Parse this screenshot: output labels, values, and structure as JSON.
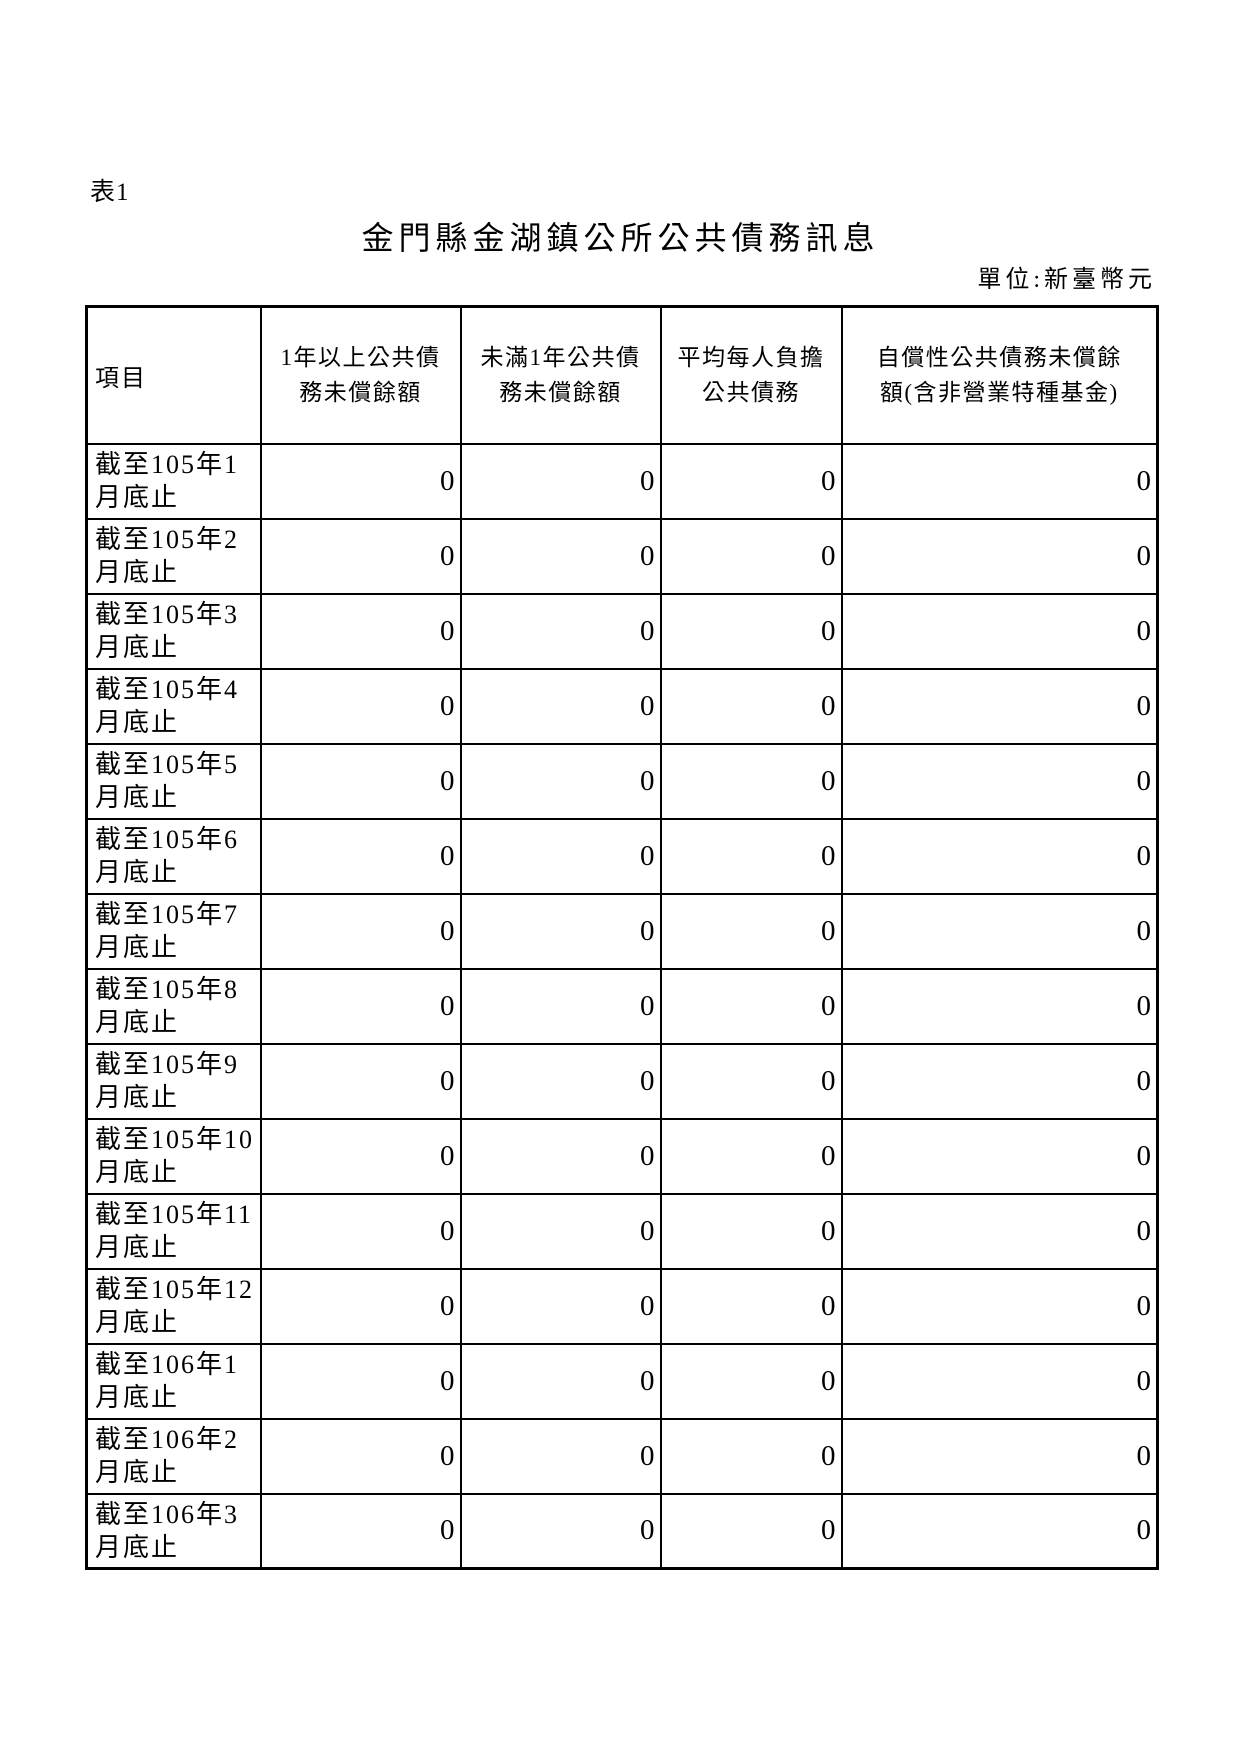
{
  "page": {
    "table_tag": "表1",
    "title": "金門縣金湖鎮公所公共債務訊息",
    "unit_note": "單位:新臺幣元",
    "text_color": "#000000",
    "background_color": "#ffffff"
  },
  "table": {
    "columns": [
      "項目",
      "1年以上公共債\n務未償餘額",
      "未滿1年公共債\n務未償餘額",
      "平均每人負擔\n公共債務",
      "自償性公共債務未償餘\n額(含非營業特種基金)"
    ],
    "rows": [
      {
        "label": "截至105年1\n月底止",
        "values": [
          "0",
          "0",
          "0",
          "0"
        ]
      },
      {
        "label": "截至105年2\n月底止",
        "values": [
          "0",
          "0",
          "0",
          "0"
        ]
      },
      {
        "label": "截至105年3\n月底止",
        "values": [
          "0",
          "0",
          "0",
          "0"
        ]
      },
      {
        "label": "截至105年4\n月底止",
        "values": [
          "0",
          "0",
          "0",
          "0"
        ]
      },
      {
        "label": "截至105年5\n月底止",
        "values": [
          "0",
          "0",
          "0",
          "0"
        ]
      },
      {
        "label": "截至105年6\n月底止",
        "values": [
          "0",
          "0",
          "0",
          "0"
        ]
      },
      {
        "label": "截至105年7\n月底止",
        "values": [
          "0",
          "0",
          "0",
          "0"
        ]
      },
      {
        "label": "截至105年8\n月底止",
        "values": [
          "0",
          "0",
          "0",
          "0"
        ]
      },
      {
        "label": "截至105年9\n月底止",
        "values": [
          "0",
          "0",
          "0",
          "0"
        ]
      },
      {
        "label": "截至105年10\n月底止",
        "values": [
          "0",
          "0",
          "0",
          "0"
        ]
      },
      {
        "label": "截至105年11\n月底止",
        "values": [
          "0",
          "0",
          "0",
          "0"
        ]
      },
      {
        "label": "截至105年12\n月底止",
        "values": [
          "0",
          "0",
          "0",
          "0"
        ]
      },
      {
        "label": "截至106年1\n月底止",
        "values": [
          "0",
          "0",
          "0",
          "0"
        ]
      },
      {
        "label": "截至106年2\n月底止",
        "values": [
          "0",
          "0",
          "0",
          "0"
        ]
      },
      {
        "label": "截至106年3\n月底止",
        "values": [
          "0",
          "0",
          "0",
          "0"
        ]
      }
    ]
  }
}
